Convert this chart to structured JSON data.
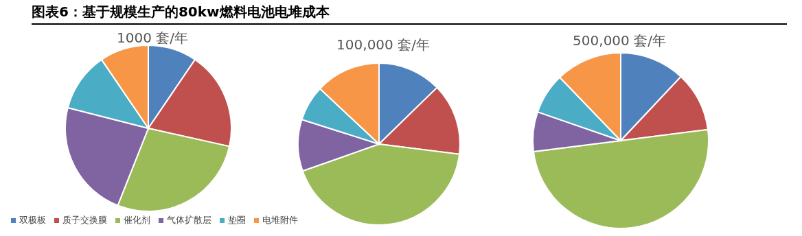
{
  "chart_data": [
    {
      "type": "pie",
      "title": "1000 套/年",
      "annotations": [
        "图表6：基于规模生产的80kw燃料电池电堆成本"
      ],
      "legend": "bottom",
      "categories": [
        "双极板",
        "质子交换膜",
        "催化剂",
        "气体扩散层",
        "垫圈",
        "电堆附件"
      ],
      "values": [
        9.5,
        19,
        27.5,
        23,
        11.5,
        9.5
      ],
      "colors": [
        "#4f81bd",
        "#c0504d",
        "#9bbb59",
        "#8064a2",
        "#4bacc6",
        "#f79646"
      ]
    },
    {
      "type": "pie",
      "title": "100,000 套/年",
      "categories": [
        null,
        null,
        null,
        null,
        null,
        null
      ],
      "values": [
        12.7,
        14.3,
        42.6,
        10.3,
        7.1,
        13
      ],
      "colors": [
        "#4f81bd",
        "#c0504d",
        "#9bbb59",
        "#8064a2",
        "#4bacc6",
        "#f79646"
      ]
    },
    {
      "type": "pie",
      "title": "500,000 套/年",
      "categories": [
        null,
        null,
        null,
        null,
        null,
        null
      ],
      "values": [
        12,
        11,
        50,
        7.3,
        7.5,
        12.2
      ],
      "colors": [
        "#4f81bd",
        "#c0504d",
        "#9bbb59",
        "#8064a2",
        "#4bacc6",
        "#f79646"
      ]
    }
  ]
}
